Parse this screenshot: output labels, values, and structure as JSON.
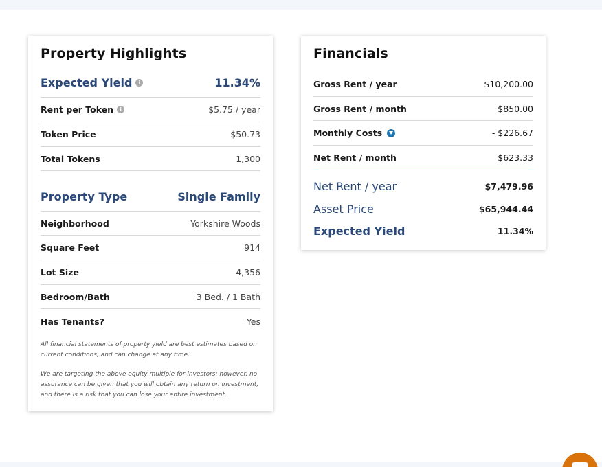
{
  "highlights": {
    "title": "Property Highlights",
    "expected_yield": {
      "label": "Expected Yield",
      "value": "11.34%"
    },
    "rent_per_token": {
      "label": "Rent per Token",
      "value": "$5.75 / year"
    },
    "token_price": {
      "label": "Token Price",
      "value": "$50.73"
    },
    "total_tokens": {
      "label": "Total Tokens",
      "value": "1,300"
    },
    "property_type": {
      "label": "Property Type",
      "value": "Single Family"
    },
    "neighborhood": {
      "label": "Neighborhood",
      "value": "Yorkshire Woods"
    },
    "square_feet": {
      "label": "Square Feet",
      "value": "914"
    },
    "lot_size": {
      "label": "Lot Size",
      "value": "4,356"
    },
    "bedroom_bath": {
      "label": "Bedroom/Bath",
      "value": "3 Bed. / 1 Bath"
    },
    "has_tenants": {
      "label": "Has Tenants?",
      "value": "Yes"
    },
    "disclaimer_1": "All financial statements of property yield are best estimates based on current conditions, and can change at any time.",
    "disclaimer_2": "We are targeting the above equity multiple for investors; however, no assurance can be given that you will obtain any return on investment, and there is a risk that you can lose your entire investment."
  },
  "financials": {
    "title": "Financials",
    "gross_rent_year": {
      "label": "Gross Rent / year",
      "value": "$10,200.00"
    },
    "gross_rent_month": {
      "label": "Gross Rent / month",
      "value": "$850.00"
    },
    "monthly_costs": {
      "label": "Monthly Costs",
      "value": "- $226.67"
    },
    "net_rent_month": {
      "label": "Net Rent / month",
      "value": "$623.33"
    },
    "net_rent_year": {
      "label": "Net Rent / year",
      "value": "$7,479.96"
    },
    "asset_price": {
      "label": "Asset Price",
      "value": "$65,944.44"
    },
    "expected_yield": {
      "label": "Expected Yield",
      "value": "11.34%"
    }
  },
  "icons": {
    "info": "info-icon",
    "expand": "chevron-down-icon",
    "chat": "chat-icon"
  },
  "colors": {
    "accent_blue": "#2a4878",
    "divider_blue": "#2c6a8f",
    "chevron_blue": "#1f78b4",
    "chat_orange": "#d9720b"
  }
}
